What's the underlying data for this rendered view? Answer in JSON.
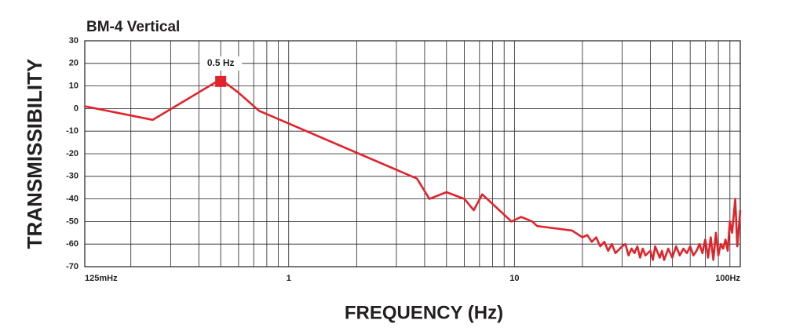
{
  "chart_data": {
    "type": "line",
    "title": "BM-4 Vertical",
    "x_label": "FREQUENCY (Hz)",
    "y_label": "TRANSMISSIBILITY",
    "log_x": true,
    "grid": true,
    "xlim": [
      0.125,
      100
    ],
    "ylim": [
      -70,
      30
    ],
    "xticks": [
      {
        "value": 0.125,
        "label": "125mHz"
      },
      1,
      10,
      {
        "value": 100,
        "label": "100Hz"
      }
    ],
    "xminorticks": [
      0.2,
      0.3,
      0.4,
      0.5,
      0.6,
      0.7,
      0.8,
      0.9,
      2,
      3,
      4,
      5,
      6,
      7,
      8,
      9,
      20,
      30,
      40,
      50,
      60,
      70,
      80,
      90
    ],
    "yticks": [
      -70,
      -60,
      -50,
      -40,
      -30,
      -20,
      -10,
      0,
      10,
      20,
      30
    ],
    "x": [
      0.125,
      0.25,
      0.5,
      0.6,
      0.74,
      3.7,
      4.2,
      5,
      6,
      6.6,
      7.2,
      9.7,
      10.7,
      12,
      12.6,
      15,
      18,
      20,
      21,
      22,
      23,
      24,
      25,
      26,
      27,
      28,
      30,
      31,
      32,
      33,
      34,
      35,
      36,
      37,
      38,
      40,
      41,
      42,
      44,
      45,
      46,
      48,
      50,
      52,
      54,
      56,
      58,
      60,
      62,
      64,
      66,
      68,
      70,
      72,
      74,
      76,
      78,
      80,
      82,
      84,
      86,
      88,
      90,
      92,
      95,
      97,
      100
    ],
    "series": [
      {
        "color": "#e2232a",
        "values": [
          1,
          -5,
          13,
          7,
          -1,
          -31,
          -40,
          -37,
          -40,
          -45,
          -38,
          -50,
          -48,
          -50,
          -52,
          -53,
          -54,
          -57,
          -56,
          -59,
          -57,
          -61,
          -59,
          -63,
          -60,
          -64,
          -61,
          -60,
          -65,
          -62,
          -64,
          -61,
          -66,
          -62,
          -65,
          -63,
          -67,
          -61,
          -66,
          -63,
          -67,
          -62,
          -66,
          -61,
          -65,
          -62,
          -64,
          -61,
          -65,
          -63,
          -60,
          -64,
          -58,
          -66,
          -57,
          -67,
          -55,
          -65,
          -60,
          -62,
          -58,
          -63,
          -50,
          -55,
          -40,
          -61,
          -45
        ]
      }
    ],
    "annotation": {
      "text": "0.5 Hz",
      "x": 0.5,
      "y": 12
    }
  }
}
